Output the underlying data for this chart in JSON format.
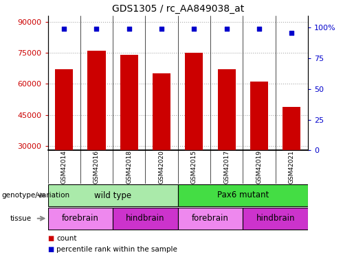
{
  "title": "GDS1305 / rc_AA849038_at",
  "samples": [
    "GSM42014",
    "GSM42016",
    "GSM42018",
    "GSM42020",
    "GSM42015",
    "GSM42017",
    "GSM42019",
    "GSM42021"
  ],
  "counts": [
    67000,
    76000,
    74000,
    65000,
    75000,
    67000,
    61000,
    49000
  ],
  "percentile_ranks": [
    99,
    99,
    99,
    99,
    99,
    99,
    99,
    96
  ],
  "bar_color": "#cc0000",
  "dot_color": "#0000cc",
  "ylim_left": [
    28000,
    93000
  ],
  "yticks_left": [
    30000,
    45000,
    60000,
    75000,
    90000
  ],
  "ylim_right": [
    0,
    110
  ],
  "yticks_right": [
    0,
    25,
    50,
    75,
    100
  ],
  "yticklabels_right": [
    "0",
    "25",
    "50",
    "75",
    "100%"
  ],
  "grid_color": "#aaaaaa",
  "genotype_groups": [
    {
      "label": "wild type",
      "start": 0,
      "end": 4,
      "color": "#aaeaaa"
    },
    {
      "label": "Pax6 mutant",
      "start": 4,
      "end": 8,
      "color": "#44dd44"
    }
  ],
  "tissue_groups": [
    {
      "label": "forebrain",
      "start": 0,
      "end": 2,
      "color": "#ee88ee"
    },
    {
      "label": "hindbrain",
      "start": 2,
      "end": 4,
      "color": "#cc33cc"
    },
    {
      "label": "forebrain",
      "start": 4,
      "end": 6,
      "color": "#ee88ee"
    },
    {
      "label": "hindbrain",
      "start": 6,
      "end": 8,
      "color": "#cc33cc"
    }
  ],
  "legend_count_color": "#cc0000",
  "legend_pct_color": "#0000cc",
  "label_genotype": "genotype/variation",
  "label_tissue": "tissue",
  "background_color": "#ffffff",
  "sample_box_color": "#cccccc",
  "arrow_color": "#888888"
}
